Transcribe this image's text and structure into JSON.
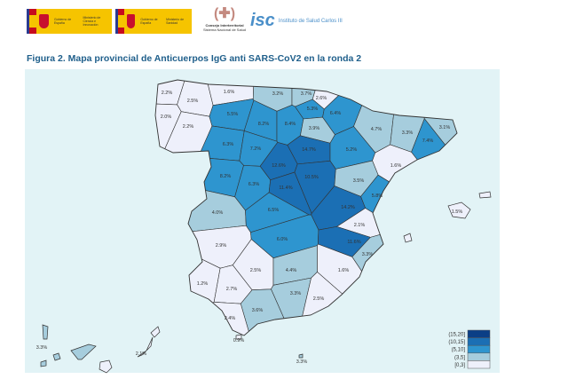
{
  "header": {
    "logo1": {
      "gov": "Gobierno de España",
      "ministry": "Ministerio de Ciencia e Innovación"
    },
    "logo2": {
      "gov": "Gobierno de España",
      "ministry": "Ministerio de Sanidad"
    },
    "logo3": {
      "name": "Consejo Interterritorial",
      "sub": "Sistema Nacional de Salud"
    },
    "logo4": {
      "name": "Instituto de Salud Carlos III"
    }
  },
  "title": "Figura 2. Mapa provincial de Anticuerpos IgG anti SARS-CoV2 en la ronda 2",
  "map": {
    "colors": {
      "(15,20]": "#0b3f86",
      "(10,15]": "#1b6fb4",
      "(5,10]": "#2e95cf",
      "(3,5]": "#a6cddd",
      "[0,3]": "#eef0fb"
    },
    "legend": [
      "(15,20]",
      "(10,15]",
      "(5,10]",
      "(3,5]",
      "[0,3]"
    ],
    "background": "#e2f3f6",
    "regions": [
      {
        "value": 2.2,
        "label": "2.2%"
      },
      {
        "value": 2.5,
        "label": "2.5%"
      },
      {
        "value": 2.0,
        "label": "2.0%"
      },
      {
        "value": 2.2,
        "label": "2.2%"
      },
      {
        "value": 1.6,
        "label": "1.6%"
      },
      {
        "value": 3.2,
        "label": "3.2%"
      },
      {
        "value": 3.7,
        "label": "3.7%"
      },
      {
        "value": 2.6,
        "label": "2.6%"
      },
      {
        "value": 5.3,
        "label": "5.3%"
      },
      {
        "value": 5.5,
        "label": "5.5%"
      },
      {
        "value": 8.2,
        "label": "8.2%"
      },
      {
        "value": 8.4,
        "label": "8.4%"
      },
      {
        "value": 3.9,
        "label": "3.9%"
      },
      {
        "value": 6.4,
        "label": "6.4%"
      },
      {
        "value": 4.7,
        "label": "4.7%"
      },
      {
        "value": 3.3,
        "label": "3.3%"
      },
      {
        "value": 3.1,
        "label": "3.1%"
      },
      {
        "value": 7.4,
        "label": "7.4%"
      },
      {
        "value": 6.3,
        "label": "6.3%"
      },
      {
        "value": 7.2,
        "label": "7.2%"
      },
      {
        "value": 14.7,
        "label": "14.7%"
      },
      {
        "value": 5.2,
        "label": "5.2%"
      },
      {
        "value": 1.6,
        "label": "1.6%"
      },
      {
        "value": 12.6,
        "label": "12.6%"
      },
      {
        "value": 8.2,
        "label": "8.2%"
      },
      {
        "value": 6.3,
        "label": "6.3%"
      },
      {
        "value": 11.4,
        "label": "11.4%"
      },
      {
        "value": 10.5,
        "label": "10.5%"
      },
      {
        "value": 3.5,
        "label": "3.5%"
      },
      {
        "value": 5.8,
        "label": "5.8%"
      },
      {
        "value": 4.0,
        "label": "4.0%"
      },
      {
        "value": 6.5,
        "label": "6.5%"
      },
      {
        "value": 14.2,
        "label": "14.2%"
      },
      {
        "value": 2.1,
        "label": "2.1%"
      },
      {
        "value": 2.9,
        "label": "2.9%"
      },
      {
        "value": 6.0,
        "label": "6.0%"
      },
      {
        "value": 11.6,
        "label": "11.6%"
      },
      {
        "value": 3.3,
        "label": "3.3%"
      },
      {
        "value": 2.5,
        "label": "2.5%"
      },
      {
        "value": 4.4,
        "label": "4.4%"
      },
      {
        "value": 1.6,
        "label": "1.6%"
      },
      {
        "value": 1.2,
        "label": "1.2%"
      },
      {
        "value": 2.7,
        "label": "2.7%"
      },
      {
        "value": 3.3,
        "label": "3.3%"
      },
      {
        "value": 2.5,
        "label": "2.5%"
      },
      {
        "value": 3.6,
        "label": "3.6%"
      },
      {
        "value": 2.4,
        "label": "2.4%"
      }
    ],
    "islands": {
      "baleares": {
        "value": 1.5,
        "label": "1.5%"
      },
      "ceuta": {
        "value": 0.9,
        "label": "0.9%"
      },
      "melilla": {
        "value": 3.3,
        "label": "3.3%"
      },
      "tenerife": {
        "value": 3.3,
        "label": "3.3%"
      },
      "las_palmas": {
        "value": 2.1,
        "label": "2.1%"
      }
    }
  }
}
